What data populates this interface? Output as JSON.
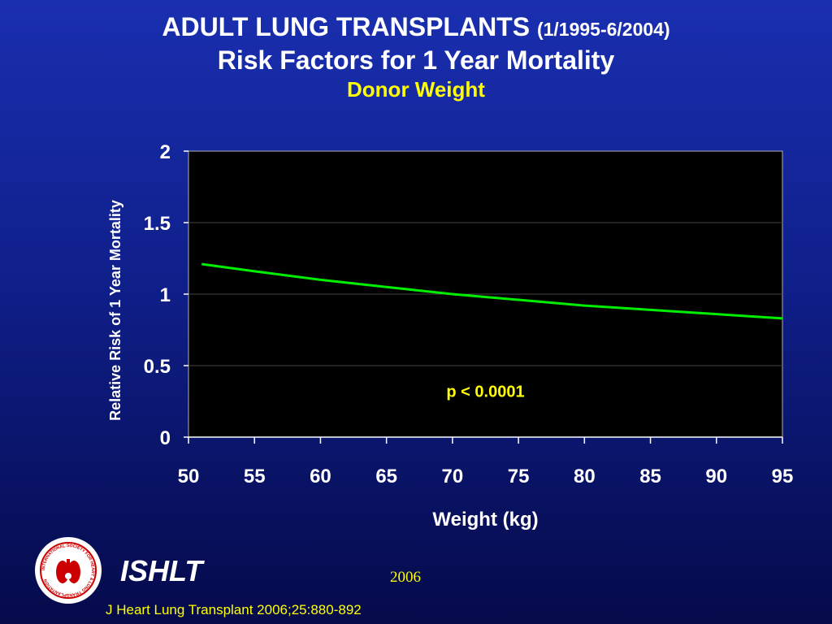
{
  "slide": {
    "title_main": "ADULT LUNG TRANSPLANTS",
    "title_dates": "(1/1995-6/2004)",
    "title_line2": "Risk Factors for 1 Year Mortality",
    "subtitle": "Donor Weight",
    "footer_org": "ISHLT",
    "footer_year": "2006",
    "citation": "J Heart Lung Transplant 2006;25:880-892",
    "logo_text": "INTERNATIONAL SOCIETY FOR HEART & LUNG TRANSPLANTATION"
  },
  "colors": {
    "background_top": "#1a2fb0",
    "background_bottom": "#050a4a",
    "title": "#ffffff",
    "accent": "#ffff00",
    "line": "#00ee00",
    "plot_bg": "#000000"
  },
  "chart_data": {
    "type": "line",
    "xlabel": "Weight (kg)",
    "ylabel": "Relative Risk of 1 Year Mortality",
    "xlim": [
      50,
      95
    ],
    "ylim": [
      0,
      2
    ],
    "xticks": [
      50,
      55,
      60,
      65,
      70,
      75,
      80,
      85,
      90,
      95
    ],
    "yticks": [
      0,
      0.5,
      1,
      1.5,
      2
    ],
    "ytick_labels": [
      "0",
      "0.5",
      "1",
      "1.5",
      "2"
    ],
    "grid": true,
    "annotation": "p < 0.0001",
    "series": [
      {
        "x": [
          51,
          55,
          60,
          65,
          70,
          75,
          80,
          85,
          90,
          95
        ],
        "y": [
          1.21,
          1.16,
          1.1,
          1.05,
          1.0,
          0.96,
          0.92,
          0.89,
          0.86,
          0.83
        ]
      }
    ]
  }
}
